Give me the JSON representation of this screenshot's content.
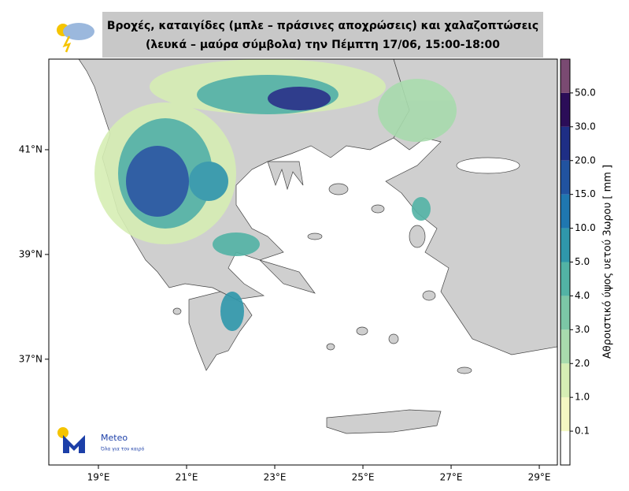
{
  "header": {
    "title_line1": "Βροχές, καταιγίδες (μπλε – πράσινες αποχρώσεις) και χαλαζοπτώσεις",
    "title_line2": "(λευκά – μαύρα σύμβολα) την Πέμπτη 17/06, 15:00-18:00"
  },
  "map": {
    "xlim": [
      17.875,
      29.41
    ],
    "ylim": [
      34.98,
      42.73
    ],
    "xticks": [
      {
        "value": 19,
        "label": "19°E"
      },
      {
        "value": 21,
        "label": "21°E"
      },
      {
        "value": 23,
        "label": "23°E"
      },
      {
        "value": 25,
        "label": "25°E"
      },
      {
        "value": 27,
        "label": "27°E"
      },
      {
        "value": 29,
        "label": "29°E"
      }
    ],
    "yticks": [
      {
        "value": 37,
        "label": "37°N"
      },
      {
        "value": 39,
        "label": "39°N"
      },
      {
        "value": 41,
        "label": "41°N"
      }
    ]
  },
  "colorbar": {
    "label": "Αθροιστικό ύψος υετού 3ωρου [ mm ]",
    "levels": [
      0.1,
      {
        "value": 1,
        "label": "1.0"
      },
      {
        "value": 2,
        "label": "2.0"
      },
      {
        "value": 3,
        "label": "3.0"
      },
      {
        "value": 4,
        "label": "4.0"
      },
      {
        "value": 5,
        "label": "5.0"
      },
      {
        "value": 10,
        "label": "10.0"
      },
      {
        "value": 15,
        "label": "15.0"
      },
      {
        "value": 20,
        "label": "20.0"
      },
      {
        "value": 30,
        "label": "30.0"
      },
      {
        "value": 50,
        "label": "50.0"
      }
    ],
    "colors": [
      "#ffffff",
      "#f4f8c2",
      "#d6eeb4",
      "#a8dbad",
      "#7cc7a6",
      "#52b3a5",
      "#2f97ab",
      "#1f77b0",
      "#2153a0",
      "#1e2e85",
      "#2b0d58",
      "#7a4a72"
    ]
  },
  "logo": {
    "name": "Meteo",
    "tagline": "Όλα για τον καιρό"
  }
}
